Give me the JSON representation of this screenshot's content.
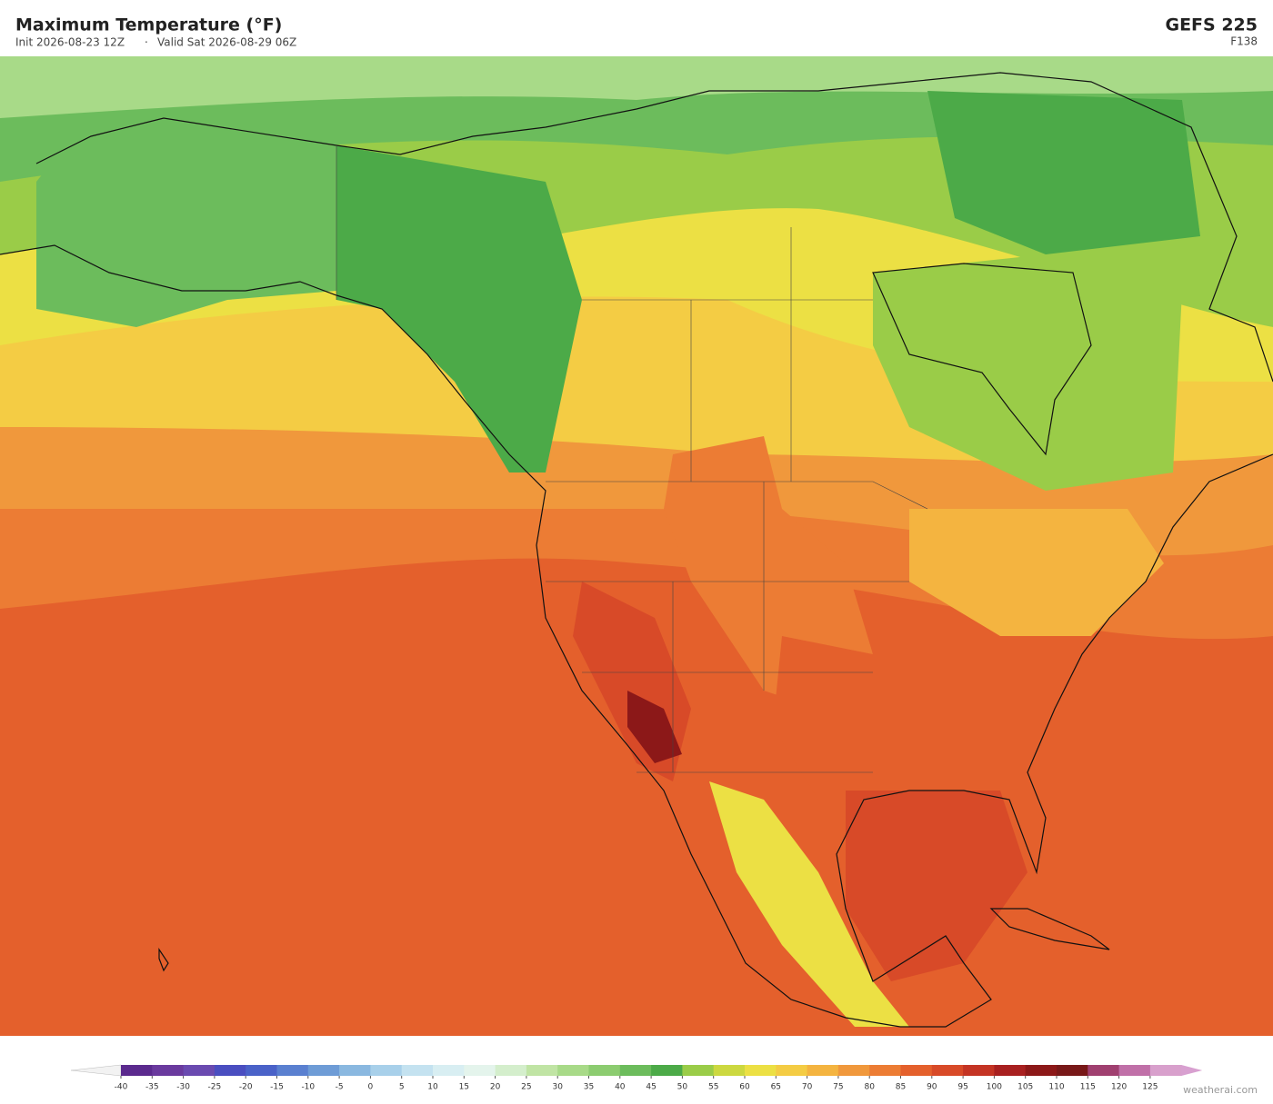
{
  "header": {
    "title": "Maximum Temperature  (°F)",
    "init": "Init 2026-08-23 12Z",
    "separator": "·",
    "valid": "Valid Sat 2026-08-29 06Z",
    "model": "GEFS  225",
    "forecast_hour": "F138"
  },
  "colorbar": {
    "ticks": [
      -40,
      -35,
      -30,
      -25,
      -20,
      -15,
      -10,
      -5,
      0,
      5,
      10,
      15,
      20,
      25,
      30,
      35,
      40,
      45,
      50,
      55,
      60,
      65,
      70,
      75,
      80,
      85,
      90,
      95,
      100,
      105,
      110,
      115,
      120,
      125
    ],
    "colors": [
      "#5b2a8e",
      "#6a3a9e",
      "#6a4ab0",
      "#4a4ec0",
      "#4a62c8",
      "#5a80d0",
      "#6e9cd6",
      "#8ab8e0",
      "#a8d0ea",
      "#c4e2f0",
      "#d8eef2",
      "#e4f4ec",
      "#d4eecc",
      "#c0e4a4",
      "#a8da88",
      "#8ccc70",
      "#6cbc5c",
      "#4caa48",
      "#9acc48",
      "#ccd840",
      "#ece044",
      "#f4cc44",
      "#f4b440",
      "#f0983c",
      "#ec7c34",
      "#e4602c",
      "#d84a28",
      "#c43424",
      "#a82020",
      "#8c1818",
      "#781818",
      "#a04070",
      "#c070a8",
      "#d8a0cc"
    ],
    "under_color": "#f2f2f2",
    "over_color": "#d8a0d0"
  },
  "credit": "weatherai.com"
}
